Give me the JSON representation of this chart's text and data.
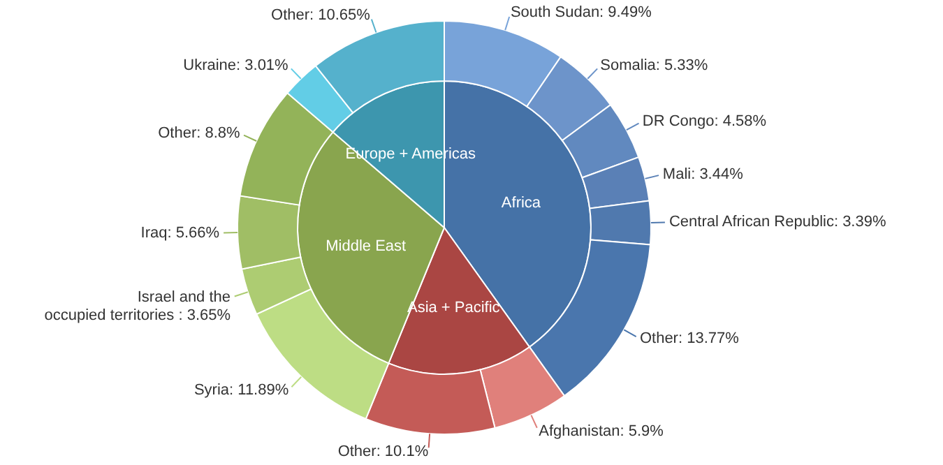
{
  "chart_data": [
    {
      "type": "pie",
      "categories": [
        "Africa",
        "Asia + Pacific",
        "Middle East",
        "Europe + Americas"
      ],
      "values": [
        40.0,
        16.0,
        30.0,
        13.66
      ],
      "colors": [
        "#4572a7",
        "#aa4643",
        "#89a54e",
        "#3d96ae"
      ]
    },
    {
      "type": "donut",
      "categories": [
        "South Sudan",
        "Somalia",
        "DR Congo",
        "Mali",
        "Central African Republic",
        "Other",
        "Afghanistan",
        "Other",
        "Syria",
        "Israel and the\noccupied territories ",
        "Iraq",
        "Other",
        "Ukraine",
        "Other"
      ],
      "values": [
        9.49,
        5.33,
        4.58,
        3.44,
        3.39,
        13.77,
        5.9,
        10.1,
        11.89,
        3.65,
        5.66,
        8.8,
        3.01,
        10.65
      ],
      "value_labels": [
        "9.49%",
        "5.33%",
        "4.58%",
        "3.44%",
        "3.39%",
        "13.77%",
        "5.9%",
        "10.1%",
        "11.89%",
        "3.65%",
        "5.66%",
        "8.8%",
        "3.01%",
        "10.65%"
      ],
      "colors": [
        "#78a3d9",
        "#6d94ca",
        "#6189bf",
        "#5a80b6",
        "#5079ae",
        "#4a76ad",
        "#e0807b",
        "#c45b57",
        "#bddd84",
        "#adcc72",
        "#a0be65",
        "#93b359",
        "#62cde6",
        "#55b1cc"
      ]
    }
  ]
}
